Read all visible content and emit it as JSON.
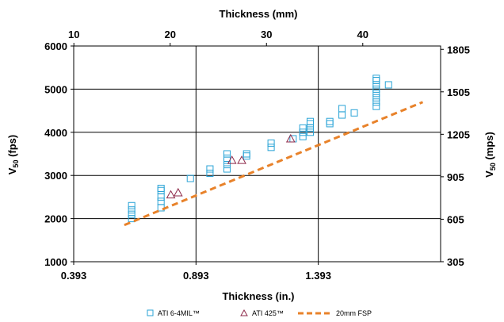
{
  "chart_data": {
    "type": "scatter",
    "title": "",
    "xlabel": "Thickness (in.)",
    "ylabel": "V50 (fps)",
    "x2label": "Thickness (mm)",
    "y2label": "V50 (mps)",
    "ylabel_parts": {
      "main": "V",
      "sub": "50",
      "rest": " (fps)"
    },
    "y2label_parts": {
      "main": "V",
      "sub": "50",
      "rest": " (mps)"
    },
    "xlim": [
      0.393,
      1.893
    ],
    "ylim": [
      1000,
      6000
    ],
    "x_ticks": [
      0.393,
      0.893,
      1.393
    ],
    "x_tick_labels": [
      "0.393",
      "0.893",
      "1.393"
    ],
    "y_ticks": [
      1000,
      2000,
      3000,
      4000,
      5000,
      6000
    ],
    "y_tick_labels": [
      "1000",
      "2000",
      "3000",
      "4000",
      "5000",
      "6000"
    ],
    "x2_ticks": [
      10,
      20,
      30,
      40
    ],
    "x2_tick_labels": [
      "10",
      "20",
      "30",
      "40"
    ],
    "y2_ticks": [
      305,
      605,
      905,
      1205,
      1505,
      1805
    ],
    "y2_tick_labels": [
      "305",
      "605",
      "905",
      "1205",
      "1505",
      "1805"
    ],
    "grid": true,
    "legend_position": "bottom",
    "series": [
      {
        "name": "ATI 6-4MIL™",
        "marker": "square",
        "color": "#29a3d6",
        "points": [
          [
            0.63,
            2000
          ],
          [
            0.63,
            2100
          ],
          [
            0.63,
            2200
          ],
          [
            0.63,
            2300
          ],
          [
            0.75,
            2250
          ],
          [
            0.75,
            2400
          ],
          [
            0.75,
            2500
          ],
          [
            0.75,
            2650
          ],
          [
            0.75,
            2700
          ],
          [
            0.87,
            2930
          ],
          [
            0.95,
            3050
          ],
          [
            0.95,
            3150
          ],
          [
            1.02,
            3150
          ],
          [
            1.02,
            3250
          ],
          [
            1.02,
            3350
          ],
          [
            1.02,
            3400
          ],
          [
            1.02,
            3500
          ],
          [
            1.1,
            3450
          ],
          [
            1.1,
            3500
          ],
          [
            1.2,
            3650
          ],
          [
            1.2,
            3750
          ],
          [
            1.29,
            3850
          ],
          [
            1.33,
            3900
          ],
          [
            1.33,
            4000
          ],
          [
            1.33,
            4100
          ],
          [
            1.36,
            4000
          ],
          [
            1.36,
            4100
          ],
          [
            1.36,
            4200
          ],
          [
            1.36,
            4250
          ],
          [
            1.44,
            4200
          ],
          [
            1.44,
            4250
          ],
          [
            1.49,
            4400
          ],
          [
            1.49,
            4550
          ],
          [
            1.54,
            4450
          ],
          [
            1.63,
            4600
          ],
          [
            1.63,
            4700
          ],
          [
            1.63,
            4800
          ],
          [
            1.63,
            4900
          ],
          [
            1.63,
            5000
          ],
          [
            1.63,
            5100
          ],
          [
            1.63,
            5200
          ],
          [
            1.63,
            5250
          ],
          [
            1.68,
            5100
          ]
        ]
      },
      {
        "name": "ATI 425™",
        "marker": "triangle",
        "color": "#8e2a4a",
        "points": [
          [
            0.79,
            2550
          ],
          [
            0.82,
            2600
          ],
          [
            1.04,
            3350
          ],
          [
            1.08,
            3350
          ],
          [
            1.28,
            3850
          ]
        ]
      },
      {
        "name": "20mm FSP",
        "marker": "dashed-line",
        "color": "#e8822a",
        "points": [
          [
            0.6,
            1850
          ],
          [
            1.82,
            4700
          ]
        ]
      }
    ]
  }
}
